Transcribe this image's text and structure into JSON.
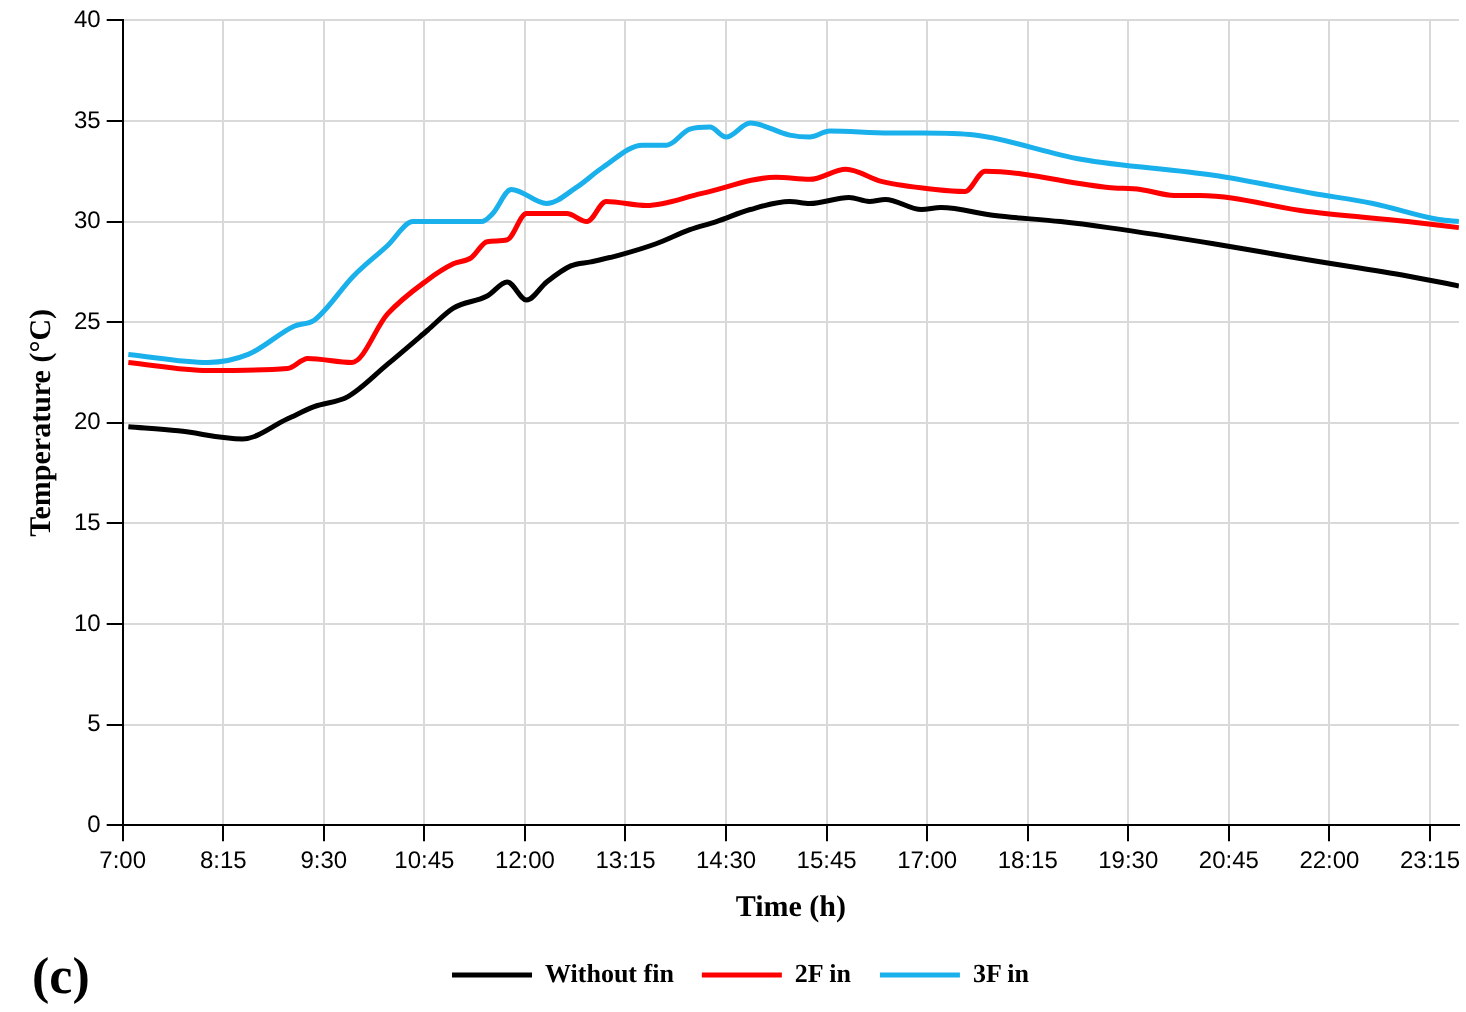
{
  "chart_data": {
    "type": "line",
    "xlabel": "Time (h)",
    "ylabel": "Temperature (°C)",
    "annotations": [
      "(c)"
    ],
    "xlim": [
      7,
      23.61
    ],
    "xticks": [
      {
        "value": 7,
        "label": "7:00"
      },
      {
        "value": 8.25,
        "label": "8:15"
      },
      {
        "value": 9.5,
        "label": "9:30"
      },
      {
        "value": 10.75,
        "label": "10:45"
      },
      {
        "value": 12,
        "label": "12:00"
      },
      {
        "value": 13.25,
        "label": "13:15"
      },
      {
        "value": 14.5,
        "label": "14:30"
      },
      {
        "value": 15.75,
        "label": "15:45"
      },
      {
        "value": 17,
        "label": "17:00"
      },
      {
        "value": 18.25,
        "label": "18:15"
      },
      {
        "value": 19.5,
        "label": "19:30"
      },
      {
        "value": 20.75,
        "label": "20:45"
      },
      {
        "value": 22,
        "label": "22:00"
      },
      {
        "value": 23.25,
        "label": "23:15"
      }
    ],
    "ylim": [
      0,
      40
    ],
    "yticks": [
      0,
      5,
      10,
      15,
      20,
      25,
      30,
      35,
      40
    ],
    "grid": true,
    "legend": "bottom",
    "marker": "none",
    "line_style": "solid",
    "series": [
      {
        "name": "Without fin",
        "color": "#000000",
        "x": [
          7.07,
          7.69,
          8.49,
          9.05,
          9.38,
          9.8,
          10.29,
          10.79,
          11.11,
          11.53,
          11.78,
          12.02,
          12.27,
          12.57,
          12.82,
          13.14,
          13.63,
          14.05,
          14.38,
          14.8,
          15.29,
          15.54,
          16.03,
          16.28,
          16.48,
          16.93,
          17.17,
          17.84,
          18.66,
          19.25,
          20.56,
          21.73,
          22.97,
          23.61
        ],
        "values": [
          19.8,
          19.6,
          19.2,
          20.2,
          20.8,
          21.3,
          22.9,
          24.6,
          25.7,
          26.3,
          27.0,
          26.1,
          27.0,
          27.8,
          28.0,
          28.3,
          28.9,
          29.6,
          30.0,
          30.6,
          31.0,
          30.9,
          31.2,
          31.0,
          31.1,
          30.6,
          30.7,
          30.3,
          30.0,
          29.7,
          28.9,
          28.1,
          27.3,
          26.8
        ]
      },
      {
        "name": "2F in",
        "color": "#ff0000",
        "x": [
          7.07,
          8.06,
          9.05,
          9.3,
          9.85,
          10.29,
          10.79,
          11.11,
          11.33,
          11.53,
          11.78,
          12.02,
          12.52,
          12.77,
          13.01,
          13.51,
          14.2,
          15.12,
          15.54,
          15.99,
          16.43,
          17.1,
          17.47,
          17.72,
          19.25,
          19.65,
          20.07,
          20.39,
          21.73,
          22.97,
          23.61
        ],
        "values": [
          23.0,
          22.6,
          22.7,
          23.2,
          23.0,
          25.4,
          27.1,
          27.9,
          28.2,
          29.0,
          29.1,
          30.4,
          30.4,
          30.0,
          31.0,
          30.8,
          31.4,
          32.2,
          32.1,
          32.6,
          32.0,
          31.6,
          31.5,
          32.5,
          31.7,
          31.6,
          31.3,
          31.3,
          30.5,
          30.0,
          29.7
        ]
      },
      {
        "name": "3F in",
        "color": "#1ab0ec",
        "x": [
          7.07,
          8.06,
          8.56,
          9.13,
          9.38,
          9.87,
          10.29,
          10.61,
          10.96,
          11.46,
          11.6,
          11.83,
          12.27,
          12.64,
          12.97,
          13.46,
          13.76,
          14.05,
          14.3,
          14.5,
          14.8,
          15.29,
          15.54,
          15.79,
          16.53,
          16.93,
          17.59,
          18.91,
          20.56,
          21.8,
          22.54,
          23.36,
          23.61
        ],
        "values": [
          23.4,
          23.0,
          23.4,
          24.8,
          25.1,
          27.3,
          28.8,
          30.0,
          30.0,
          30.0,
          30.4,
          31.6,
          30.9,
          31.7,
          32.7,
          33.8,
          33.8,
          34.6,
          34.7,
          34.2,
          34.9,
          34.3,
          34.2,
          34.5,
          34.4,
          34.4,
          34.3,
          33.1,
          32.3,
          31.4,
          30.9,
          30.1,
          30.0
        ]
      }
    ]
  }
}
